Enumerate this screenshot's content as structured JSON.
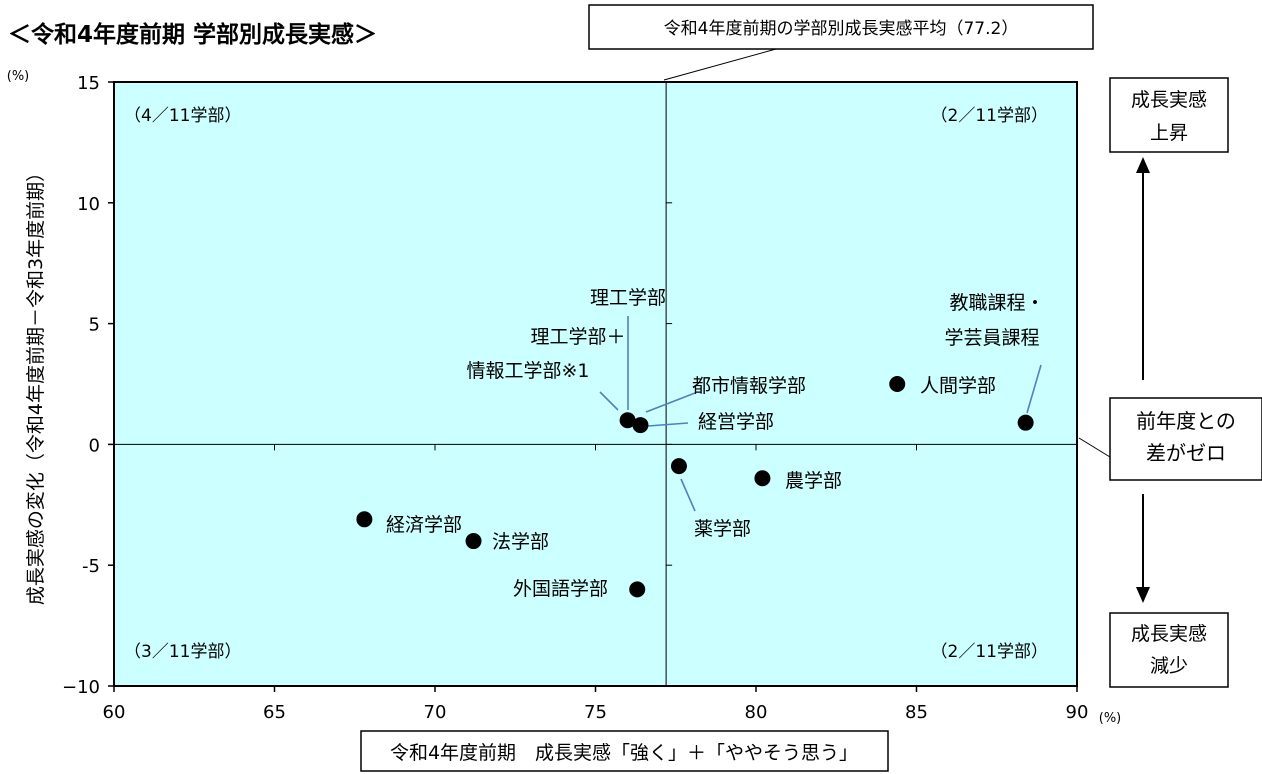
{
  "chart_data": {
    "type": "scatter",
    "title": "＜令和4年度前期 学部別成長実感＞",
    "xlabel": "令和4年度前期　成長実感「強く」＋「ややそう思う」",
    "ylabel": "成長実感の変化（令和4年度前期－令和3年度前期）",
    "x_unit": "(%)",
    "y_unit": "(%)",
    "xlim": [
      60,
      90
    ],
    "ylim": [
      -10,
      15
    ],
    "x_ticks": [
      60,
      65,
      70,
      75,
      80,
      85,
      90
    ],
    "y_ticks": [
      15,
      10,
      5,
      0,
      -5,
      -10
    ],
    "x_tick_labels": [
      "60",
      "65",
      "70",
      "75",
      "80",
      "85",
      "90"
    ],
    "y_tick_labels": [
      "15",
      "10",
      "5",
      "0",
      "-5",
      "−10"
    ],
    "grid": false,
    "plot_background": "#ccffff",
    "marker_color": "#000000",
    "leader_color": "#4f81bd",
    "average_line": {
      "x": 77.2,
      "label": "令和4年度前期の学部別成長実感平均（77.2）"
    },
    "zero_line": {
      "y": 0,
      "label": [
        "前年度との",
        "差がゼロ"
      ]
    },
    "quadrant_labels": {
      "top_left": "（4／11学部）",
      "top_right": "（2／11学部）",
      "bottom_left": "（3／11学部）",
      "bottom_right": "（2／11学部）"
    },
    "side_boxes": {
      "up": [
        "成長実感",
        "上昇"
      ],
      "down": [
        "成長実感",
        "減少"
      ]
    },
    "points": [
      {
        "name": "理工学部",
        "x": 76.0,
        "y": 1.0
      },
      {
        "name": "理工学部＋情報工学部※1",
        "label": [
          "理工学部＋",
          "情報工学部※1"
        ],
        "x": 76.0,
        "y": 1.0
      },
      {
        "name": "都市情報学部",
        "x": 76.4,
        "y": 0.8
      },
      {
        "name": "経営学部",
        "x": 76.4,
        "y": 0.7
      },
      {
        "name": "人間学部",
        "x": 84.4,
        "y": 2.5
      },
      {
        "name": "教職課程・学芸員課程",
        "label": [
          "教職課程・",
          "学芸員課程"
        ],
        "x": 88.4,
        "y": 0.9
      },
      {
        "name": "薬学部",
        "x": 77.6,
        "y": -0.9
      },
      {
        "name": "農学部",
        "x": 80.2,
        "y": -1.4
      },
      {
        "name": "経済学部",
        "x": 67.8,
        "y": -3.1
      },
      {
        "name": "法学部",
        "x": 71.2,
        "y": -4.0
      },
      {
        "name": "外国語学部",
        "x": 76.3,
        "y": -6.0
      }
    ]
  }
}
